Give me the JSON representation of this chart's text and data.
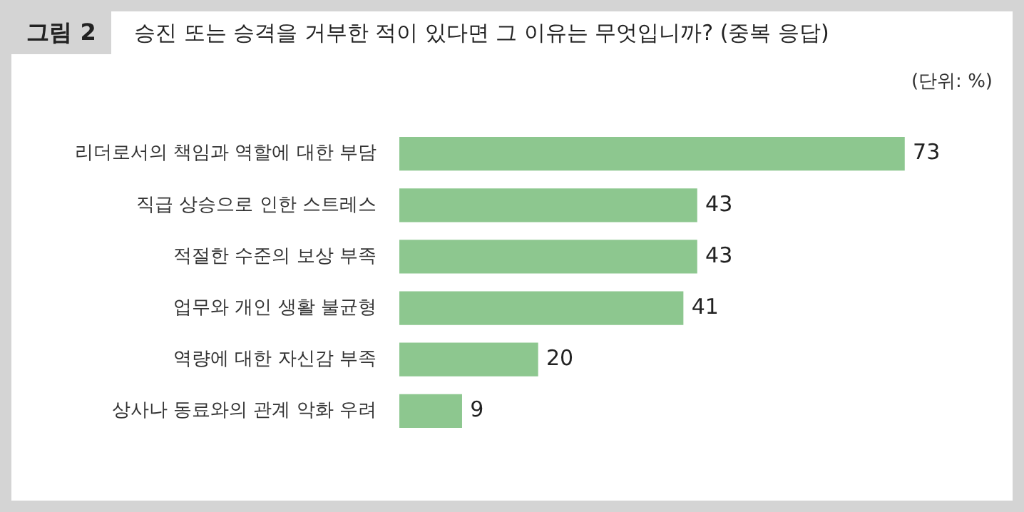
{
  "chart_data": {
    "type": "bar",
    "orientation": "horizontal",
    "title": "승진 또는 승격을 거부한 적이 있다면 그 이유는 무엇입니까? (중복 응답)",
    "annotations": [
      "그림 2",
      "(단위: %)"
    ],
    "categories": [
      "리더로서의 책임과 역할에 대한 부담",
      "직급 상승으로 인한 스트레스",
      "적절한 수준의 보상 부족",
      "업무와 개인 생활 불균형",
      "역량에 대한 자신감 부족",
      "상사나 동료와의 관계 악화 우려"
    ],
    "values": [
      73,
      43,
      43,
      41,
      20,
      9
    ],
    "color": "#8dc78f",
    "data_labels": true,
    "grid": false,
    "legend": false
  }
}
